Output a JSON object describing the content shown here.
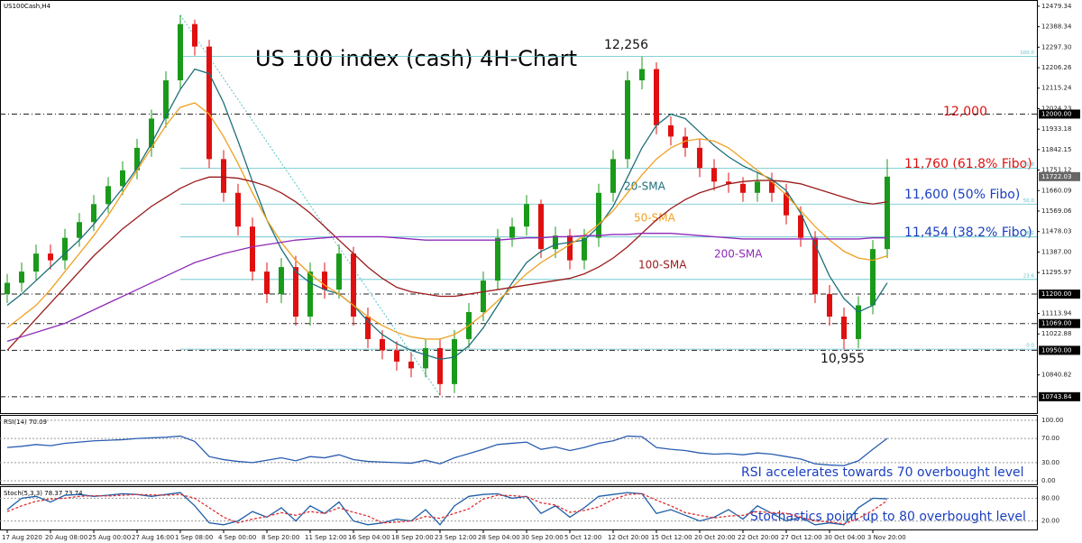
{
  "chart_data": [
    {
      "type": "candlestick",
      "title": "US 100 index (cash) 4H-Chart",
      "symbol": "US100Cash,H4",
      "categories": [
        "17 Aug 2020",
        null,
        null,
        "20 Aug 08:00",
        null,
        null,
        "25 Aug 00:00",
        null,
        null,
        "27 Aug 16:00",
        null,
        null,
        "1 Sep 08:00",
        null,
        null,
        "4 Sep 00:00",
        null,
        null,
        "8 Sep 20:00",
        null,
        null,
        "11 Sep 12:00",
        null,
        null,
        "16 Sep 04:00",
        null,
        null,
        "18 Sep 20:00",
        null,
        null,
        "23 Sep 12:00",
        null,
        null,
        "28 Sep 04:00",
        null,
        null,
        "30 Sep 20:00",
        null,
        null,
        "5 Oct 12:00",
        null,
        null,
        "12 Oct 20:00",
        null,
        null,
        "15 Oct 12:00",
        null,
        null,
        "20 Oct 20:00",
        null,
        null,
        "22 Oct 20:00",
        null,
        null,
        "27 Oct 12:00",
        null,
        null,
        "30 Oct 04:00",
        null,
        null,
        "3 Nov 20:00",
        null
      ],
      "open": [
        11200,
        11250,
        11300,
        11380,
        11350,
        11450,
        11520,
        11600,
        11680,
        11750,
        11850,
        11980,
        12150,
        12400,
        12300,
        11800,
        11650,
        11500,
        11300,
        11200,
        11320,
        11100,
        11300,
        11220,
        11380,
        11100,
        11000,
        10950,
        10900,
        10870,
        10960,
        10800,
        11000,
        11120,
        11260,
        11450,
        11500,
        11600,
        11400,
        11460,
        11350,
        11450,
        11650,
        11800,
        12150,
        12200,
        11950,
        11900,
        11850,
        11760,
        11700,
        11690,
        11650,
        11700,
        11650,
        11550,
        11450,
        11200,
        11100,
        11000,
        11150,
        11400
      ],
      "high": [
        11290,
        11340,
        11420,
        11420,
        11490,
        11560,
        11640,
        11720,
        11790,
        11890,
        12020,
        12190,
        12440,
        12420,
        12330,
        11840,
        11690,
        11540,
        11340,
        11360,
        11370,
        11340,
        11340,
        11420,
        11410,
        11140,
        11040,
        10990,
        10940,
        11000,
        11000,
        11040,
        11160,
        11300,
        11490,
        11540,
        11640,
        11620,
        11500,
        11490,
        11490,
        11690,
        11840,
        12190,
        12256,
        12230,
        11990,
        11940,
        11890,
        11800,
        11740,
        11720,
        11740,
        11740,
        11690,
        11590,
        11480,
        11240,
        11140,
        11190,
        11440,
        11800
      ],
      "low": [
        11160,
        11210,
        11260,
        11310,
        11310,
        11410,
        11480,
        11560,
        11640,
        11710,
        11810,
        11940,
        12110,
        12260,
        11760,
        11610,
        11460,
        11260,
        11160,
        11160,
        11060,
        11060,
        11180,
        11180,
        11060,
        10960,
        10910,
        10860,
        10830,
        10830,
        10750,
        10760,
        10960,
        11080,
        11220,
        11410,
        11460,
        11360,
        11360,
        11310,
        11310,
        11410,
        11610,
        11760,
        12110,
        11910,
        11860,
        11810,
        11720,
        11660,
        11650,
        11610,
        11610,
        11610,
        11510,
        11410,
        11160,
        11060,
        10955,
        10960,
        11110,
        11360
      ],
      "close": [
        11250,
        11300,
        11380,
        11350,
        11450,
        11520,
        11600,
        11680,
        11750,
        11850,
        11980,
        12150,
        12400,
        12300,
        11800,
        11650,
        11500,
        11300,
        11200,
        11320,
        11100,
        11300,
        11220,
        11380,
        11100,
        11000,
        10950,
        10900,
        10870,
        10960,
        10800,
        11000,
        11120,
        11260,
        11450,
        11500,
        11600,
        11400,
        11460,
        11350,
        11450,
        11650,
        11800,
        12150,
        12200,
        11950,
        11900,
        11850,
        11760,
        11700,
        11690,
        11650,
        11700,
        11650,
        11550,
        11450,
        11200,
        11100,
        11000,
        11150,
        11400,
        11722
      ],
      "up_color": "#1a9a1a",
      "down_color": "#e01010",
      "series": [
        {
          "name": "20-SMA",
          "color": "#1f6f7a",
          "values": [
            11150,
            11200,
            11260,
            11320,
            11380,
            11440,
            11510,
            11590,
            11670,
            11760,
            11870,
            11990,
            12110,
            12200,
            12180,
            12050,
            11880,
            11700,
            11530,
            11400,
            11300,
            11250,
            11220,
            11200,
            11150,
            11080,
            11020,
            10980,
            10950,
            10930,
            10910,
            10920,
            10970,
            11050,
            11150,
            11250,
            11340,
            11390,
            11420,
            11430,
            11440,
            11500,
            11590,
            11720,
            11850,
            11950,
            12000,
            11980,
            11920,
            11860,
            11810,
            11770,
            11740,
            11710,
            11660,
            11560,
            11420,
            11280,
            11180,
            11120,
            11150,
            11250
          ]
        },
        {
          "name": "50-SMA",
          "color": "#f0a020",
          "values": [
            11050,
            11100,
            11150,
            11220,
            11300,
            11380,
            11460,
            11550,
            11650,
            11750,
            11850,
            11950,
            12030,
            12050,
            12000,
            11900,
            11780,
            11650,
            11530,
            11430,
            11350,
            11290,
            11240,
            11200,
            11150,
            11100,
            11060,
            11030,
            11010,
            11000,
            11000,
            11020,
            11060,
            11110,
            11170,
            11230,
            11290,
            11340,
            11380,
            11420,
            11460,
            11510,
            11570,
            11650,
            11730,
            11800,
            11850,
            11880,
            11890,
            11880,
            11850,
            11800,
            11750,
            11700,
            11640,
            11570,
            11500,
            11440,
            11390,
            11360,
            11350,
            11370
          ]
        },
        {
          "name": "100-SMA",
          "color": "#9b1b1b",
          "values": [
            10950,
            11020,
            11090,
            11160,
            11230,
            11300,
            11370,
            11430,
            11490,
            11540,
            11590,
            11630,
            11670,
            11700,
            11720,
            11720,
            11715,
            11700,
            11680,
            11650,
            11610,
            11560,
            11500,
            11440,
            11380,
            11320,
            11270,
            11230,
            11210,
            11200,
            11190,
            11190,
            11200,
            11210,
            11220,
            11230,
            11240,
            11250,
            11260,
            11270,
            11290,
            11320,
            11360,
            11410,
            11470,
            11530,
            11580,
            11620,
            11650,
            11670,
            11690,
            11700,
            11705,
            11705,
            11700,
            11690,
            11670,
            11650,
            11630,
            11610,
            11600,
            11610
          ]
        },
        {
          "name": "200-SMA",
          "color": "#8e2bb8",
          "values": [
            10990,
            11010,
            11030,
            11050,
            11070,
            11100,
            11130,
            11160,
            11190,
            11220,
            11250,
            11280,
            11310,
            11340,
            11360,
            11380,
            11395,
            11410,
            11420,
            11430,
            11440,
            11445,
            11450,
            11455,
            11455,
            11455,
            11455,
            11450,
            11445,
            11440,
            11440,
            11440,
            11440,
            11440,
            11440,
            11445,
            11450,
            11450,
            11455,
            11455,
            11460,
            11460,
            11465,
            11465,
            11470,
            11470,
            11470,
            11465,
            11460,
            11455,
            11450,
            11445,
            11445,
            11445,
            11445,
            11445,
            11445,
            11445,
            11445,
            11445,
            11450,
            11450
          ]
        }
      ],
      "ylim": [
        10671,
        12507
      ],
      "yticks": [
        12479.34,
        12388.34,
        {
          "value": 12297.3,
          "label": "12297.30"
        },
        12206.26,
        12115.24,
        12024.23,
        11933.18,
        11842.15,
        11751.12,
        11660.09,
        11569.06,
        11478.03,
        {
          "value": 11387,
          "label": "11387.00"
        },
        11295.97,
        11113.94,
        11022.88,
        10840.82
      ],
      "levels": [
        {
          "value": 12000,
          "label": "12000.00"
        },
        {
          "value": 11200,
          "label": "11200.00"
        },
        {
          "value": 11069,
          "label": "11069.00"
        },
        {
          "value": 10950,
          "label": "10950.00"
        },
        {
          "value": 10743.84,
          "label": "10743.84"
        }
      ],
      "last_price": {
        "value": 11722.03,
        "label": "11722.03"
      },
      "fibonacci_color": "#5bc0c8",
      "fibonacci": [
        {
          "value": 12256,
          "label": "100.0"
        },
        {
          "value": 11760,
          "label": "61.8"
        },
        {
          "value": 11600,
          "label": "50.0"
        },
        {
          "value": 11454,
          "label": "38.2"
        },
        {
          "value": 11265,
          "label": "23.6"
        },
        {
          "value": 10955,
          "label": "0.0"
        }
      ],
      "annotations": [
        {
          "text": "12,256",
          "color": "#111111"
        },
        {
          "text": "12,000",
          "color": "#e01010"
        },
        {
          "text": "11,760 (61.8% Fibo)",
          "color": "#e01010"
        },
        {
          "text": "11,600 (50% Fibo)",
          "color": "#1a3fc0"
        },
        {
          "text": "11,454 (38.2% Fibo)",
          "color": "#1a3fc0"
        },
        {
          "text": "10,955",
          "color": "#111111"
        }
      ]
    },
    {
      "type": "line",
      "title": "RSI(14) 70.09",
      "annotation": "RSI accelerates towards 70 overbought level",
      "annotation_color": "#1a3fc0",
      "series": [
        {
          "color": "#2a5db0",
          "values": [
            55,
            57,
            60,
            58,
            62,
            64,
            66,
            67,
            68,
            70,
            71,
            72,
            74,
            65,
            40,
            35,
            32,
            30,
            34,
            38,
            33,
            40,
            38,
            43,
            35,
            32,
            31,
            30,
            29,
            34,
            28,
            38,
            45,
            52,
            60,
            62,
            64,
            52,
            56,
            50,
            55,
            62,
            66,
            74,
            73,
            55,
            52,
            50,
            46,
            44,
            45,
            43,
            46,
            44,
            40,
            36,
            28,
            26,
            25,
            33,
            52,
            70.09
          ]
        }
      ],
      "ylim": [
        0,
        100
      ],
      "yticks": [
        {
          "value": 100,
          "label": "100.00"
        },
        {
          "value": 70,
          "label": "70.00"
        },
        {
          "value": 30,
          "label": "30.00"
        },
        {
          "value": 0,
          "label": "0.00"
        }
      ]
    },
    {
      "type": "line",
      "title": "Stoch(5,3,3) 78.37 73.74",
      "annotation": "Stochastics point up to 80 overbought level",
      "annotation_color": "#1a3fc0",
      "series": [
        {
          "color": "#1f5fa8",
          "values": [
            50,
            80,
            85,
            70,
            88,
            90,
            85,
            88,
            92,
            90,
            85,
            90,
            95,
            60,
            15,
            10,
            20,
            45,
            30,
            55,
            20,
            60,
            40,
            70,
            20,
            10,
            15,
            25,
            20,
            50,
            10,
            60,
            85,
            90,
            92,
            80,
            85,
            40,
            60,
            30,
            55,
            85,
            90,
            95,
            92,
            40,
            50,
            35,
            20,
            30,
            50,
            25,
            60,
            40,
            20,
            30,
            10,
            15,
            10,
            55,
            80,
            78.37
          ]
        },
        {
          "color": "#e03030",
          "dashed": true,
          "values": [
            45,
            60,
            72,
            78,
            80,
            85,
            87,
            86,
            88,
            90,
            89,
            88,
            90,
            80,
            55,
            30,
            15,
            25,
            32,
            42,
            35,
            45,
            40,
            55,
            43,
            33,
            15,
            17,
            20,
            32,
            27,
            40,
            52,
            78,
            88,
            87,
            84,
            68,
            62,
            43,
            48,
            57,
            77,
            90,
            92,
            75,
            60,
            42,
            35,
            28,
            33,
            35,
            45,
            42,
            40,
            30,
            20,
            18,
            12,
            27,
            48,
            73.74
          ]
        }
      ],
      "ylim": [
        0,
        100
      ],
      "yticks": [
        {
          "value": 80,
          "label": "80.00"
        },
        {
          "value": 20,
          "label": "20.00"
        }
      ]
    }
  ]
}
